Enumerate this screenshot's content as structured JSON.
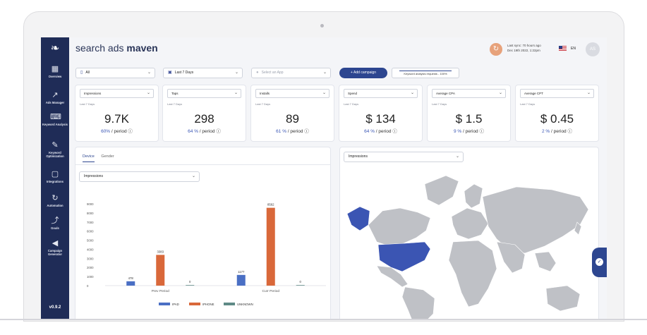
{
  "app": {
    "brand_light": "search ads ",
    "brand_bold": "maven",
    "version": "v0.9.2"
  },
  "sidebar": {
    "items": [
      {
        "label": "Overview",
        "icon": "grid-icon"
      },
      {
        "label": "Ads Manager",
        "icon": "chart-arrow-icon"
      },
      {
        "label": "Keyword Analysis",
        "icon": "keyboard-icon"
      },
      {
        "label": "Keyword Optimization",
        "icon": "edit-icon"
      },
      {
        "label": "Integrations",
        "icon": "layers-icon"
      },
      {
        "label": "Automation",
        "icon": "refresh-icon"
      },
      {
        "label": "Goals",
        "icon": "trend-icon"
      },
      {
        "label": "Campaign Generator",
        "icon": "megaphone-icon"
      }
    ]
  },
  "header": {
    "sync_line1": "Last sync: 70 hours ago",
    "sync_line2": "Dec 19th 2022, 1:22pm",
    "language": "EN",
    "avatar": "AS"
  },
  "filters": {
    "device": "All",
    "date": "Last 7 Days",
    "app_placeholder": "Select an App",
    "add_campaign": "+ Add campaign",
    "keyword_requests": "Keyword analysis requests - 100%"
  },
  "kpis": [
    {
      "metric": "Impressions",
      "period": "Last 7 Days",
      "value": "9.7K",
      "pct": "60%",
      "suffix": " / period"
    },
    {
      "metric": "Taps",
      "period": "Last 7 Days",
      "value": "298",
      "pct": "64 %",
      "suffix": " / period"
    },
    {
      "metric": "Installs",
      "period": "Last 7 Days",
      "value": "89",
      "pct": "61 %",
      "suffix": " / period"
    },
    {
      "metric": "Spend",
      "period": "Last 7 Days",
      "value": "$ 134",
      "pct": "64 %",
      "suffix": " / period"
    },
    {
      "metric": "Average CPA",
      "period": "Last 7 Days",
      "value": "$ 1.5",
      "pct": "9 %",
      "suffix": " / period"
    },
    {
      "metric": "Average CPT",
      "period": "Last 7 Days",
      "value": "$ 0.45",
      "pct": "2 %",
      "suffix": " / period"
    }
  ],
  "device_panel": {
    "tabs": [
      "Device",
      "Gender"
    ],
    "metric_select": "Impressions"
  },
  "map_panel": {
    "metric_select": "Impressions"
  },
  "colors": {
    "accent": "#2d4690",
    "ipad": "#4a6fc4",
    "iphone": "#d9683a",
    "unknown": "#5f8a86"
  },
  "chart_data": {
    "type": "bar",
    "categories": [
      "Prev Period",
      "Curr Period"
    ],
    "series": [
      {
        "name": "IPAD",
        "values": [
          478,
          1177
        ]
      },
      {
        "name": "IPHONE",
        "values": [
          3383,
          8562
        ]
      },
      {
        "name": "UNKNOWN",
        "values": [
          0,
          0
        ]
      }
    ],
    "yticks": [
      "0",
      "1000",
      "2000",
      "3000",
      "4000",
      "5000",
      "6000",
      "7000",
      "8000",
      "9000"
    ],
    "ylim": [
      0,
      9000
    ],
    "legend": "bottom",
    "grid": false
  }
}
